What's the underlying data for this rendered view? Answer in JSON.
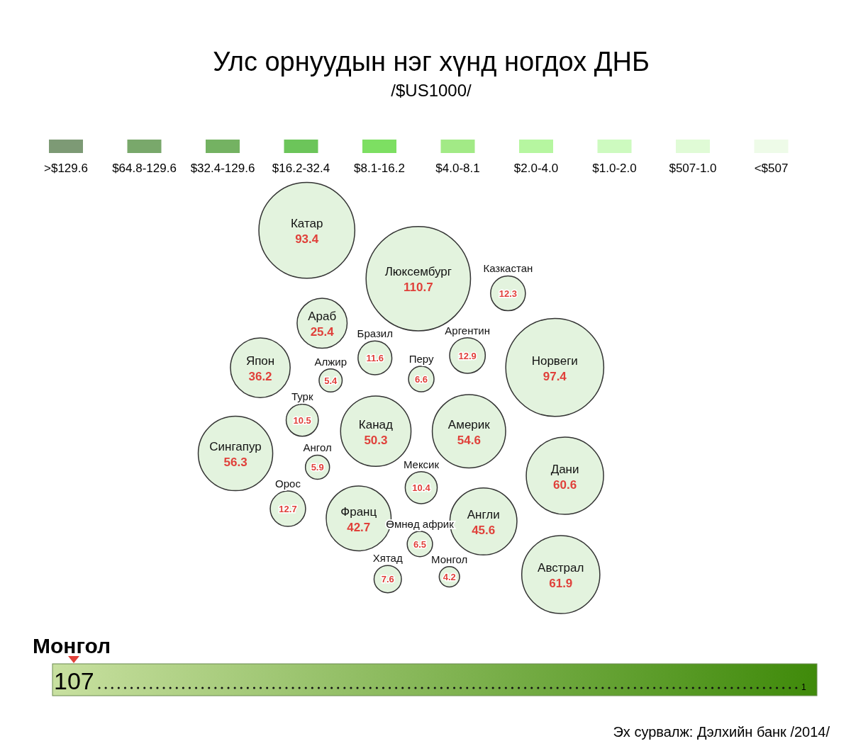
{
  "chart_data": {
    "type": "other",
    "title": "Улс орнуудын нэг хүнд ногдох ДНБ",
    "subtitle": "/$US1000/",
    "categories": [
      "Канад",
      "Америк",
      "Мексик",
      "Перу",
      "Бразил",
      "Аргентин",
      "Англи",
      "Франц",
      "Норвеги",
      "Люксембург",
      "Алжир",
      "Дани",
      "Ангол",
      "Өмнөд африк",
      "Турк",
      "Араб",
      "Казкастан",
      "Катар",
      "Орос",
      "Монгол",
      "Хятад",
      "Япон",
      "Сингапур",
      "Австрал"
    ],
    "values": [
      50.3,
      54.6,
      10.4,
      6.6,
      11.6,
      12.9,
      45.6,
      42.7,
      97.4,
      110.7,
      5.4,
      60.6,
      5.9,
      6.5,
      10.5,
      25.4,
      12.3,
      93.4,
      12.7,
      4.2,
      7.6,
      36.2,
      56.3,
      61.9
    ],
    "data_labels": true,
    "annotations": [
      ">$129.6",
      "$64.8-129.6",
      "$32.4-129.6",
      "$16.2-32.4",
      "$8.1-16.2",
      "$4.0-8.1",
      "$2.0-4.0",
      "$1.0-2.0",
      "$507-1.0",
      "<$507",
      "Монгол",
      "107",
      "1",
      "Эх сурвалж: Дэлхийн банк /2014/"
    ]
  }
}
